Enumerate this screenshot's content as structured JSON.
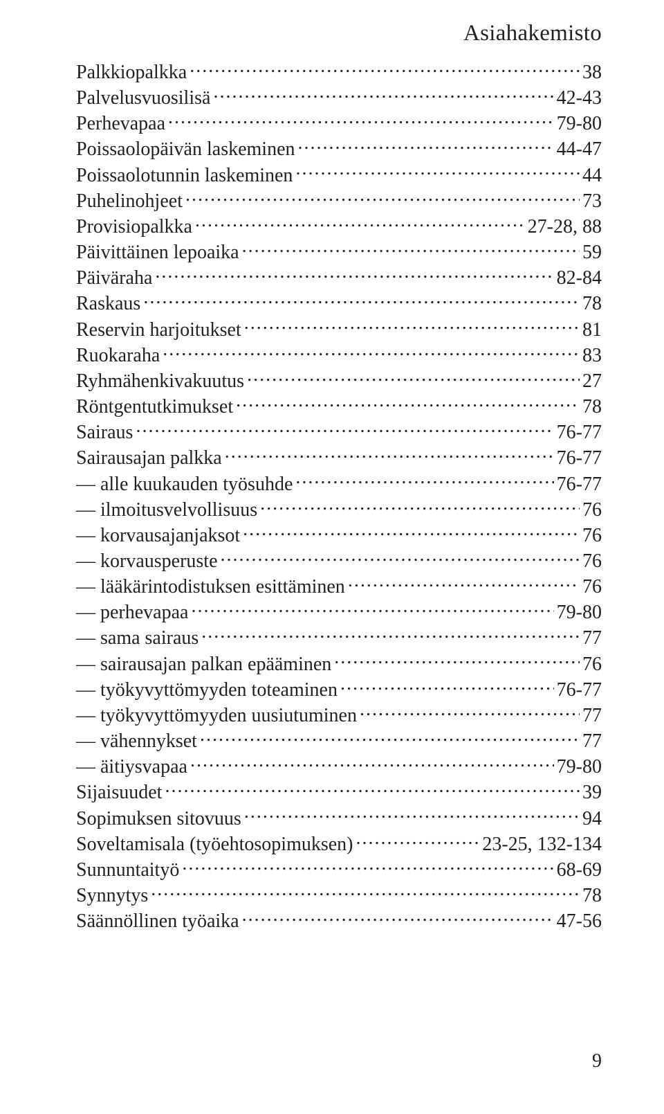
{
  "header": "Asiahakemisto",
  "page_number": "9",
  "colors": {
    "text": "#231f20",
    "background": "#ffffff"
  },
  "typography": {
    "header_fontsize": 33,
    "entry_fontsize": 28,
    "font_family": "Times New Roman"
  },
  "entries": [
    {
      "term": "Palkkiopalkka",
      "page": "38",
      "sub": false
    },
    {
      "term": "Palvelusvuosilisä",
      "page": "42-43",
      "sub": false
    },
    {
      "term": "Perhevapaa",
      "page": "79-80",
      "sub": false
    },
    {
      "term": "Poissaolopäivän laskeminen",
      "page": "44-47",
      "sub": false
    },
    {
      "term": "Poissaolotunnin laskeminen",
      "page": "44",
      "sub": false
    },
    {
      "term": "Puhelinohjeet",
      "page": "73",
      "sub": false
    },
    {
      "term": "Provisiopalkka",
      "page": "27-28, 88",
      "sub": false
    },
    {
      "term": "Päivittäinen lepoaika",
      "page": "59",
      "sub": false
    },
    {
      "term": "Päiväraha",
      "page": "82-84",
      "sub": false
    },
    {
      "term": "Raskaus",
      "page": "78",
      "sub": false
    },
    {
      "term": "Reservin harjoitukset",
      "page": "81",
      "sub": false
    },
    {
      "term": "Ruokaraha",
      "page": "83",
      "sub": false
    },
    {
      "term": "Ryhmähenkivakuutus",
      "page": "27",
      "sub": false
    },
    {
      "term": "Röntgentutkimukset",
      "page": "78",
      "sub": false
    },
    {
      "term": "Sairaus",
      "page": "76-77",
      "sub": false
    },
    {
      "term": "Sairausajan palkka",
      "page": "76-77",
      "sub": false
    },
    {
      "term": "alle kuukauden työsuhde",
      "page": "76-77",
      "sub": true
    },
    {
      "term": "ilmoitusvelvollisuus",
      "page": "76",
      "sub": true
    },
    {
      "term": "korvausajanjaksot",
      "page": "76",
      "sub": true
    },
    {
      "term": "korvausperuste",
      "page": "76",
      "sub": true
    },
    {
      "term": "lääkärintodistuksen esittäminen",
      "page": "76",
      "sub": true
    },
    {
      "term": "perhevapaa",
      "page": "79-80",
      "sub": true
    },
    {
      "term": "sama sairaus",
      "page": "77",
      "sub": true
    },
    {
      "term": "sairausajan palkan epääminen",
      "page": "76",
      "sub": true
    },
    {
      "term": "työkyvyttömyyden toteaminen",
      "page": "76-77",
      "sub": true
    },
    {
      "term": "työkyvyttömyyden uusiutuminen",
      "page": "77",
      "sub": true
    },
    {
      "term": "vähennykset",
      "page": "77",
      "sub": true
    },
    {
      "term": "äitiysvapaa",
      "page": "79-80",
      "sub": true
    },
    {
      "term": "Sijaisuudet",
      "page": "39",
      "sub": false
    },
    {
      "term": "Sopimuksen sitovuus",
      "page": "94",
      "sub": false
    },
    {
      "term": "Soveltamisala (työehtosopimuksen)",
      "page": "23-25, 132-134",
      "sub": false
    },
    {
      "term": "Sunnuntaityö",
      "page": "68-69",
      "sub": false
    },
    {
      "term": "Synnytys",
      "page": "78",
      "sub": false
    },
    {
      "term": "Säännöllinen työaika",
      "page": "47-56",
      "sub": false
    }
  ]
}
